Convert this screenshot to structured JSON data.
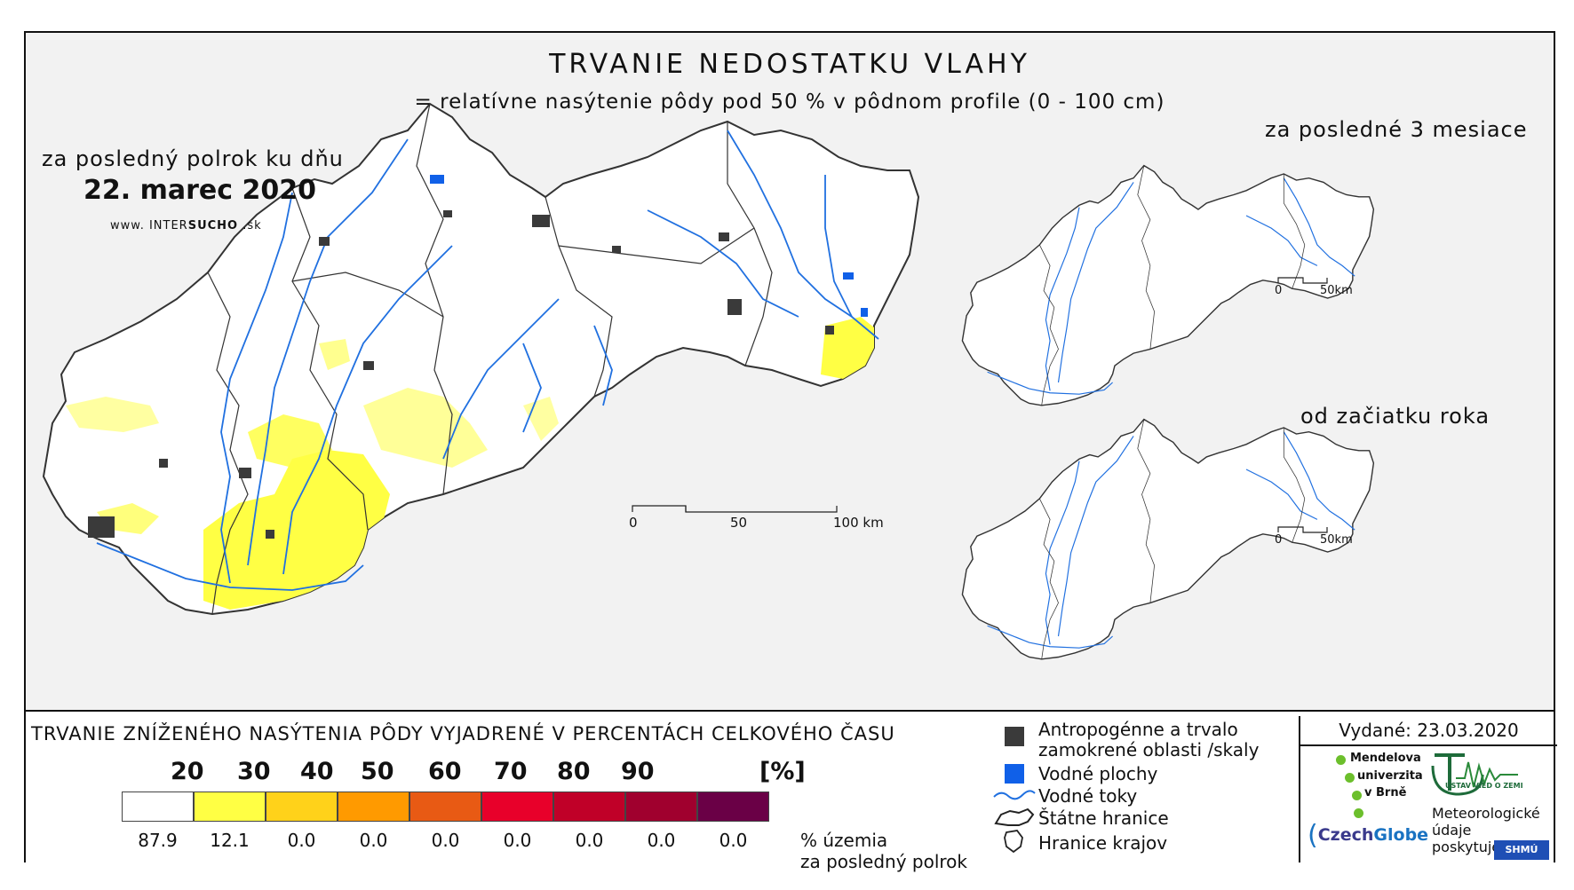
{
  "title": "TRVANIE NEDOSTATKU VLAHY",
  "subtitle": "= relatívne nasýtenie pôdy pod 50 % v pôdnom profile (0 - 100 cm)",
  "main_map": {
    "period_label": "za posledný polrok ku dňu",
    "date_label": "22. marec 2020",
    "website_prefix": "www. INTER",
    "website_brand": "SUCHO",
    "website_suffix": " .sk",
    "scale_labels": [
      "0",
      "50",
      "100 km"
    ]
  },
  "inset_3m": {
    "label": "za posledné 3 mesiace",
    "scale_labels": [
      "0",
      "50km"
    ]
  },
  "inset_ytd": {
    "label": "od začiatku roka",
    "scale_labels": [
      "0",
      "50km"
    ]
  },
  "legend": {
    "title": "TRVANIE ZNÍŽENÉHO NASÝTENIA PÔDY VYJADRENÉ V PERCENTÁCH CELKOVÉHO ČASU",
    "thresholds": [
      "20",
      "30",
      "40",
      "50",
      "60",
      "70",
      "80",
      "90"
    ],
    "unit": "[%]",
    "classes": [
      {
        "color": "#ffffff",
        "share": "87.9"
      },
      {
        "color": "#ffff44",
        "share": "12.1"
      },
      {
        "color": "#ffd21a",
        "share": "0.0"
      },
      {
        "color": "#ff9a00",
        "share": "0.0"
      },
      {
        "color": "#e85a14",
        "share": "0.0"
      },
      {
        "color": "#e8002a",
        "share": "0.0"
      },
      {
        "color": "#c00028",
        "share": "0.0"
      },
      {
        "color": "#a0002e",
        "share": "0.0"
      },
      {
        "color": "#6a0046",
        "share": "0.0"
      }
    ],
    "share_note_line1": "% územia",
    "share_note_line2": "za posledný polrok",
    "symbols": {
      "anthropogenic_line1": "Antropogénne a trvalo",
      "anthropogenic_line2": "zamokrené oblasti /skaly",
      "water_bodies": "Vodné plochy",
      "water_streams": "Vodné toky",
      "state_border": "Štátne hranice",
      "region_border": "Hranice krajov"
    },
    "colors": {
      "urban": "#3a3a3a",
      "water": "#1060e8",
      "river": "#2070e0",
      "drought": "#ffff44"
    }
  },
  "issued_label": "Vydané: 23.03.2020",
  "logos": {
    "mendel_line1": "Mendelova",
    "mendel_line2": "univerzita",
    "mendel_line3": "v Brně",
    "czechglobe_a": "Czech",
    "czechglobe_b": "Globe",
    "uvz": "ÚSTAV VIED O ZEMI",
    "meteo_line1": "Meteorologické",
    "meteo_line2": "údaje",
    "meteo_line3": "poskytuje:",
    "shmu": "SHMÚ"
  }
}
